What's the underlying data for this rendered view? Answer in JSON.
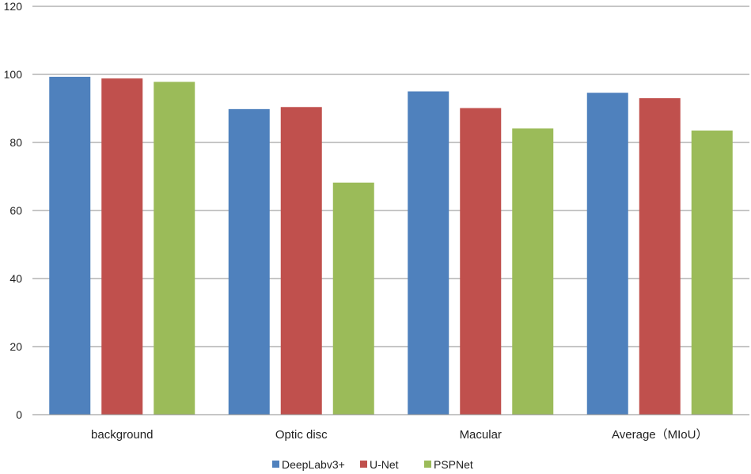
{
  "chart_data": {
    "type": "bar",
    "title": "",
    "xlabel": "",
    "ylabel": "",
    "ylim": [
      0,
      120
    ],
    "yticks": [
      0,
      20,
      40,
      60,
      80,
      100,
      120
    ],
    "grid": true,
    "legend_position": "bottom",
    "categories": [
      "background",
      "Optic disc",
      "Macular",
      "Average（MIoU）"
    ],
    "series": [
      {
        "name": "DeepLabv3+",
        "color": "#4f81bd",
        "values": [
          99.3,
          89.8,
          95.0,
          94.6
        ]
      },
      {
        "name": "U-Net",
        "color": "#c0504d",
        "values": [
          98.8,
          90.4,
          90.1,
          93.0
        ]
      },
      {
        "name": "PSPNet",
        "color": "#9bbb59",
        "values": [
          97.8,
          68.2,
          84.1,
          83.5
        ]
      }
    ]
  }
}
